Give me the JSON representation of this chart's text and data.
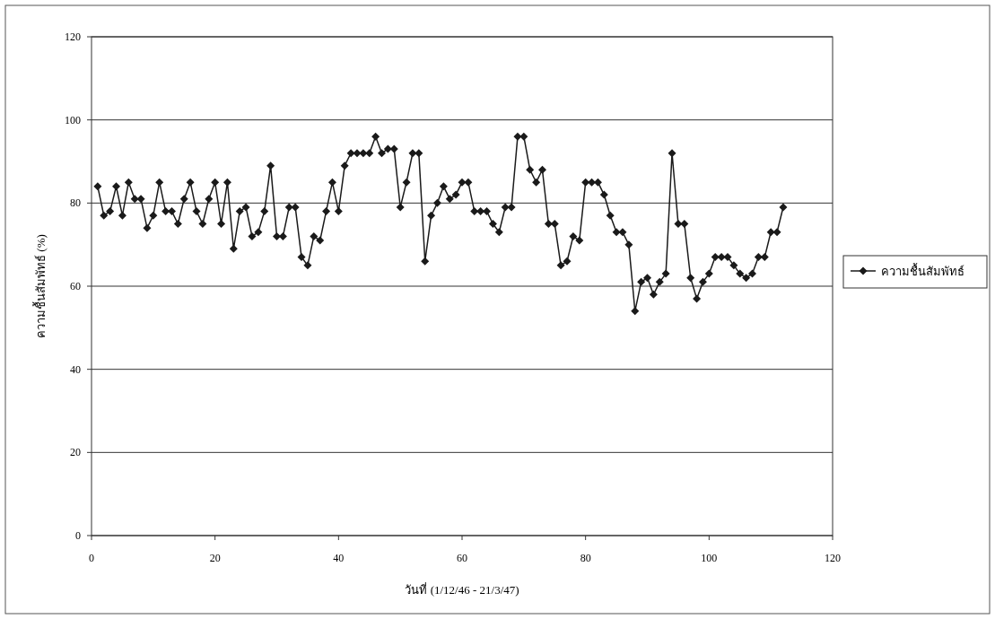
{
  "chart_data": {
    "type": "line",
    "xlabel": "วันที่ (1/12/46 - 21/3/47)",
    "ylabel": "ความชื้นสัมพัทธ์ (%)",
    "x": [
      1,
      2,
      3,
      4,
      5,
      6,
      7,
      8,
      9,
      10,
      11,
      12,
      13,
      14,
      15,
      16,
      17,
      18,
      19,
      20,
      21,
      22,
      23,
      24,
      25,
      26,
      27,
      28,
      29,
      30,
      31,
      32,
      33,
      34,
      35,
      36,
      37,
      38,
      39,
      40,
      41,
      42,
      43,
      44,
      45,
      46,
      47,
      48,
      49,
      50,
      51,
      52,
      53,
      54,
      55,
      56,
      57,
      58,
      59,
      60,
      61,
      62,
      63,
      64,
      65,
      66,
      67,
      68,
      69,
      70,
      71,
      72,
      73,
      74,
      75,
      76,
      77,
      78,
      79,
      80,
      81,
      82,
      83,
      84,
      85,
      86,
      87,
      88,
      89,
      90,
      91,
      92,
      93,
      94,
      95,
      96,
      97,
      98,
      99,
      100,
      101,
      102,
      103,
      104,
      105,
      106,
      107,
      108,
      109,
      110,
      111,
      112
    ],
    "series": [
      {
        "name": "ความชื้นสัมพัทธ์",
        "color": "#1a1a1a",
        "values": [
          84,
          77,
          78,
          84,
          77,
          85,
          81,
          81,
          74,
          77,
          85,
          78,
          78,
          75,
          81,
          85,
          78,
          75,
          81,
          85,
          75,
          85,
          69,
          78,
          79,
          72,
          73,
          78,
          89,
          72,
          72,
          79,
          79,
          67,
          65,
          72,
          71,
          78,
          85,
          78,
          89,
          92,
          92,
          92,
          92,
          96,
          92,
          93,
          93,
          79,
          85,
          92,
          92,
          66,
          77,
          80,
          84,
          81,
          82,
          85,
          85,
          78,
          78,
          78,
          75,
          73,
          79,
          79,
          96,
          96,
          88,
          85,
          88,
          75,
          75,
          65,
          66,
          72,
          71,
          85,
          85,
          85,
          82,
          77,
          73,
          73,
          70,
          54,
          61,
          62,
          58,
          61,
          63,
          92,
          75,
          75,
          62,
          57,
          61,
          63,
          67,
          67,
          67,
          65,
          63,
          62,
          63,
          67,
          67,
          73,
          73,
          79
        ]
      }
    ],
    "xlim": [
      0,
      120
    ],
    "xticks": [
      0,
      20,
      40,
      60,
      80,
      100,
      120
    ],
    "ylim": [
      0,
      120
    ],
    "yticks": [
      0,
      20,
      40,
      60,
      80,
      100,
      120
    ],
    "grid": "y",
    "legend": "right",
    "marker": "diamond",
    "line_style": "solid"
  }
}
